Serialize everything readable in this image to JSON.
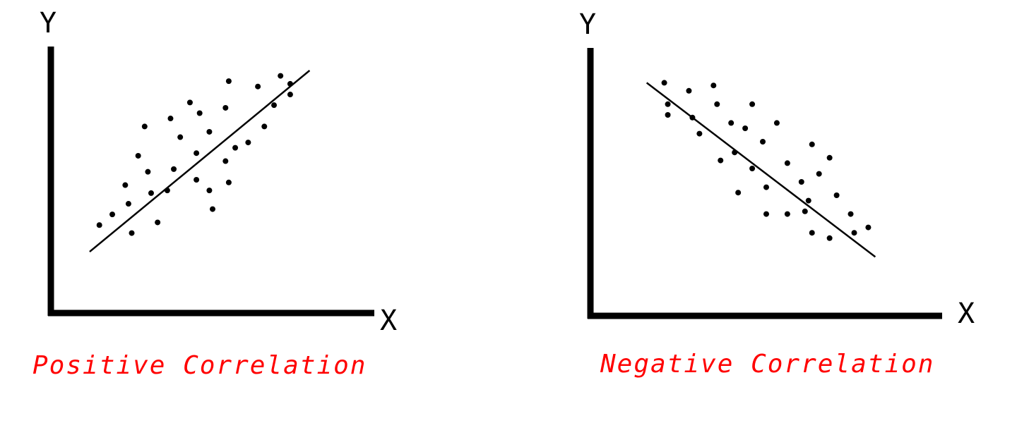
{
  "chart_data": [
    {
      "type": "scatter",
      "title": "Positive Correlation",
      "xlabel": "X",
      "ylabel": "Y",
      "xlim": [
        0,
        10
      ],
      "ylim": [
        0,
        10
      ],
      "axis_color": "#000000",
      "point_color": "#000000",
      "title_color": "#ff0000",
      "points": [
        [
          1.5,
          3.3
        ],
        [
          1.9,
          3.7
        ],
        [
          2.5,
          3.0
        ],
        [
          2.4,
          4.1
        ],
        [
          2.3,
          4.8
        ],
        [
          2.7,
          5.9
        ],
        [
          3.0,
          5.3
        ],
        [
          2.9,
          7.0
        ],
        [
          3.1,
          4.5
        ],
        [
          3.3,
          3.4
        ],
        [
          3.6,
          4.6
        ],
        [
          3.8,
          5.4
        ],
        [
          3.7,
          7.3
        ],
        [
          4.0,
          6.6
        ],
        [
          4.5,
          5.0
        ],
        [
          4.5,
          6.0
        ],
        [
          4.3,
          7.9
        ],
        [
          4.6,
          7.5
        ],
        [
          4.9,
          6.8
        ],
        [
          5.0,
          3.9
        ],
        [
          4.9,
          4.6
        ],
        [
          5.4,
          5.7
        ],
        [
          5.5,
          4.9
        ],
        [
          5.4,
          7.7
        ],
        [
          5.5,
          8.7
        ],
        [
          5.7,
          6.2
        ],
        [
          6.1,
          6.4
        ],
        [
          6.4,
          8.5
        ],
        [
          6.6,
          7.0
        ],
        [
          6.9,
          7.8
        ],
        [
          7.1,
          8.9
        ],
        [
          7.4,
          8.2
        ],
        [
          7.4,
          8.6
        ]
      ],
      "trend_line": [
        [
          1.2,
          2.3
        ],
        [
          8.0,
          9.1
        ]
      ]
    },
    {
      "type": "scatter",
      "title": "Negative Correlation",
      "xlabel": "X",
      "ylabel": "Y",
      "xlim": [
        0,
        10
      ],
      "ylim": [
        0,
        10
      ],
      "axis_color": "#000000",
      "point_color": "#000000",
      "title_color": "#ff0000",
      "points": [
        [
          2.1,
          8.7
        ],
        [
          2.2,
          7.9
        ],
        [
          2.2,
          7.5
        ],
        [
          2.8,
          8.4
        ],
        [
          2.9,
          7.4
        ],
        [
          3.1,
          6.8
        ],
        [
          3.5,
          8.6
        ],
        [
          3.6,
          7.9
        ],
        [
          3.7,
          5.8
        ],
        [
          4.0,
          7.2
        ],
        [
          4.1,
          6.1
        ],
        [
          4.2,
          4.6
        ],
        [
          4.4,
          7.0
        ],
        [
          4.6,
          7.9
        ],
        [
          4.6,
          5.5
        ],
        [
          4.9,
          6.5
        ],
        [
          5.0,
          4.8
        ],
        [
          5.0,
          3.8
        ],
        [
          5.3,
          7.2
        ],
        [
          5.6,
          5.7
        ],
        [
          5.6,
          3.8
        ],
        [
          6.0,
          5.0
        ],
        [
          6.1,
          3.9
        ],
        [
          6.3,
          6.4
        ],
        [
          6.3,
          3.1
        ],
        [
          6.5,
          5.3
        ],
        [
          6.8,
          2.9
        ],
        [
          7.0,
          4.5
        ],
        [
          7.4,
          3.8
        ],
        [
          7.5,
          3.1
        ],
        [
          7.9,
          3.3
        ],
        [
          6.8,
          5.9
        ],
        [
          6.2,
          4.3
        ]
      ],
      "trend_line": [
        [
          1.6,
          8.7
        ],
        [
          8.1,
          2.2
        ]
      ]
    }
  ]
}
